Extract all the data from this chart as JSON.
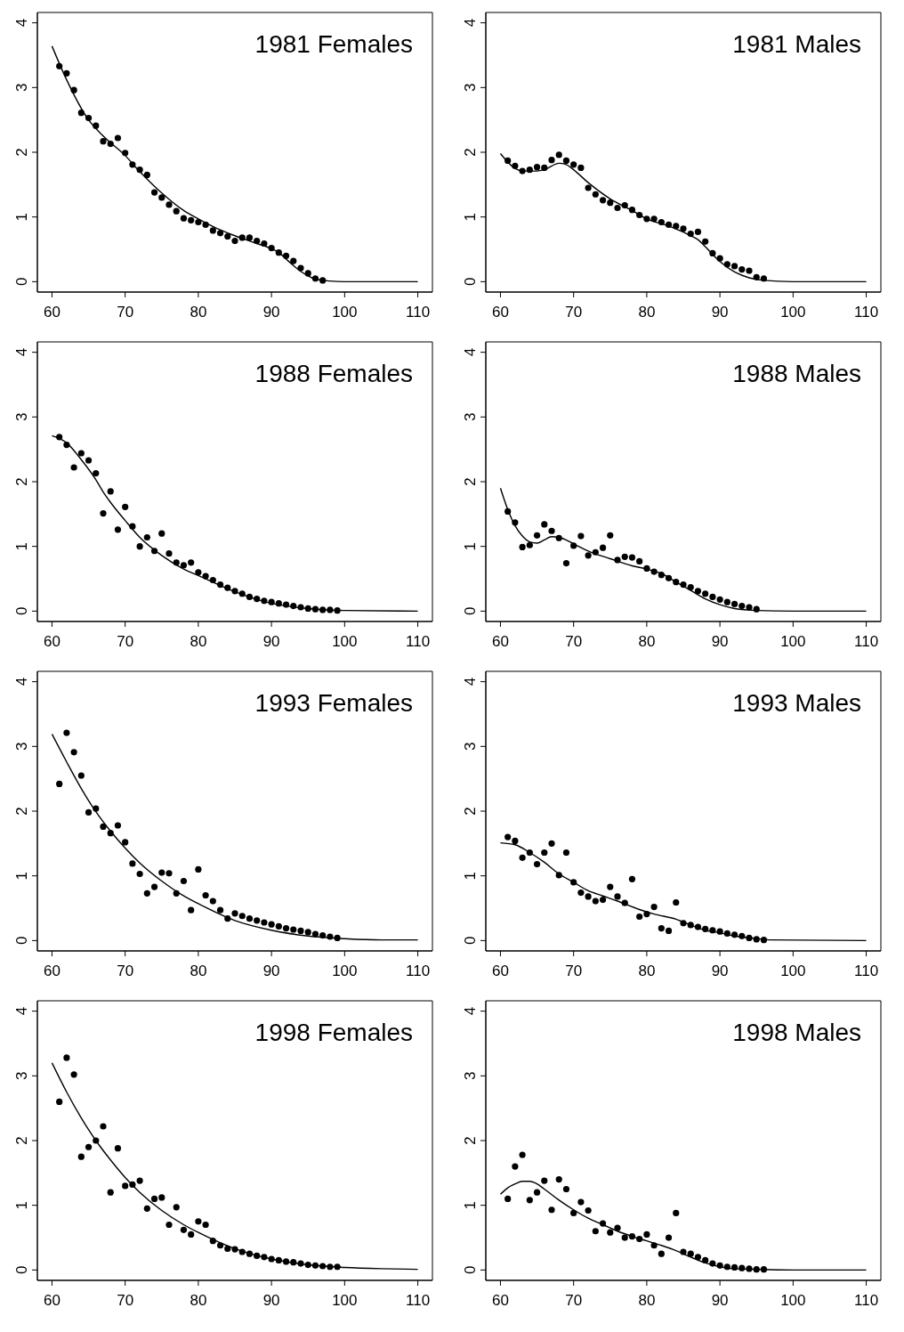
{
  "chart_data": [
    {
      "type": "scatter",
      "title": "1981 Females",
      "xlim": [
        58,
        112
      ],
      "ylim": [
        -0.16,
        4.16
      ],
      "xticks": [
        60,
        70,
        80,
        90,
        100,
        110
      ],
      "yticks": [
        0,
        1,
        2,
        3,
        4
      ],
      "grid": false,
      "legend": false,
      "line_style": "solid",
      "series": [
        {
          "marker": "circle",
          "color": "#000000",
          "x": [
            61,
            62,
            63,
            64,
            65,
            66,
            67,
            68,
            69,
            70,
            71,
            72,
            73,
            74,
            75,
            76,
            77,
            78,
            79,
            80,
            81,
            82,
            83,
            84,
            85,
            86,
            87,
            88,
            89,
            90,
            91,
            92,
            93,
            94,
            95,
            96,
            97
          ],
          "values": [
            3.33,
            3.22,
            2.96,
            2.61,
            2.53,
            2.41,
            2.17,
            2.13,
            2.22,
            1.99,
            1.81,
            1.73,
            1.65,
            1.38,
            1.3,
            1.19,
            1.09,
            0.98,
            0.95,
            0.92,
            0.88,
            0.79,
            0.75,
            0.7,
            0.63,
            0.68,
            0.68,
            0.63,
            0.59,
            0.52,
            0.45,
            0.4,
            0.32,
            0.21,
            0.13,
            0.05,
            0.02
          ]
        },
        {
          "type": "line",
          "marker": "none",
          "color": "#000000",
          "x": [
            60,
            62,
            65,
            67,
            70,
            72,
            75,
            78,
            80,
            83,
            85,
            88,
            90,
            91,
            92,
            93,
            94,
            95,
            96,
            98,
            100,
            110
          ],
          "values": [
            3.64,
            3.12,
            2.5,
            2.25,
            1.95,
            1.7,
            1.37,
            1.1,
            0.97,
            0.8,
            0.71,
            0.59,
            0.51,
            0.45,
            0.35,
            0.25,
            0.16,
            0.09,
            0.04,
            0.01,
            0,
            0
          ]
        }
      ]
    },
    {
      "type": "scatter",
      "title": "1981 Males",
      "xlim": [
        58,
        112
      ],
      "ylim": [
        -0.16,
        4.16
      ],
      "xticks": [
        60,
        70,
        80,
        90,
        100,
        110
      ],
      "yticks": [
        0,
        1,
        2,
        3,
        4
      ],
      "grid": false,
      "legend": false,
      "line_style": "solid",
      "series": [
        {
          "marker": "circle",
          "color": "#000000",
          "x": [
            61,
            62,
            63,
            64,
            65,
            66,
            67,
            68,
            69,
            70,
            71,
            72,
            73,
            74,
            75,
            76,
            77,
            78,
            79,
            80,
            81,
            82,
            83,
            84,
            85,
            86,
            87,
            88,
            89,
            90,
            91,
            92,
            93,
            94,
            95,
            96
          ],
          "values": [
            1.87,
            1.79,
            1.71,
            1.73,
            1.77,
            1.76,
            1.88,
            1.96,
            1.87,
            1.81,
            1.76,
            1.45,
            1.35,
            1.26,
            1.22,
            1.14,
            1.18,
            1.11,
            1.03,
            0.97,
            0.97,
            0.92,
            0.88,
            0.86,
            0.82,
            0.74,
            0.77,
            0.62,
            0.44,
            0.36,
            0.27,
            0.24,
            0.19,
            0.17,
            0.07,
            0.05
          ]
        },
        {
          "type": "line",
          "marker": "none",
          "color": "#000000",
          "x": [
            60,
            62,
            63,
            65,
            66,
            68,
            69,
            70,
            72,
            75,
            78,
            80,
            83,
            86,
            87,
            88,
            90,
            92,
            94,
            96,
            100,
            110
          ],
          "values": [
            1.98,
            1.75,
            1.71,
            1.71,
            1.73,
            1.83,
            1.81,
            1.73,
            1.53,
            1.28,
            1.1,
            0.97,
            0.86,
            0.71,
            0.65,
            0.54,
            0.31,
            0.15,
            0.06,
            0.02,
            0,
            0
          ]
        }
      ]
    },
    {
      "type": "scatter",
      "title": "1988 Females",
      "xlim": [
        58,
        112
      ],
      "ylim": [
        -0.16,
        4.16
      ],
      "xticks": [
        60,
        70,
        80,
        90,
        100,
        110
      ],
      "yticks": [
        0,
        1,
        2,
        3,
        4
      ],
      "grid": false,
      "legend": false,
      "line_style": "solid",
      "series": [
        {
          "marker": "circle",
          "color": "#000000",
          "x": [
            61,
            62,
            63,
            64,
            65,
            66,
            67,
            68,
            69,
            70,
            71,
            72,
            73,
            74,
            75,
            76,
            77,
            78,
            79,
            80,
            81,
            82,
            83,
            84,
            85,
            86,
            87,
            88,
            89,
            90,
            91,
            92,
            93,
            94,
            95,
            96,
            97,
            98,
            99
          ],
          "values": [
            2.69,
            2.57,
            2.22,
            2.44,
            2.33,
            2.13,
            1.51,
            1.85,
            1.26,
            1.61,
            1.31,
            1.0,
            1.14,
            0.93,
            1.2,
            0.89,
            0.75,
            0.71,
            0.75,
            0.6,
            0.54,
            0.48,
            0.41,
            0.36,
            0.31,
            0.27,
            0.22,
            0.19,
            0.16,
            0.14,
            0.12,
            0.1,
            0.08,
            0.06,
            0.04,
            0.03,
            0.02,
            0.02,
            0.01
          ]
        },
        {
          "type": "line",
          "marker": "none",
          "color": "#000000",
          "x": [
            60,
            62,
            64,
            66,
            67,
            68,
            70,
            72,
            75,
            78,
            80,
            85,
            90,
            95,
            100,
            110
          ],
          "values": [
            2.71,
            2.6,
            2.34,
            2.03,
            1.84,
            1.68,
            1.4,
            1.14,
            0.86,
            0.65,
            0.55,
            0.3,
            0.12,
            0.04,
            0.01,
            0
          ]
        }
      ]
    },
    {
      "type": "scatter",
      "title": "1988 Males",
      "xlim": [
        58,
        112
      ],
      "ylim": [
        -0.16,
        4.16
      ],
      "xticks": [
        60,
        70,
        80,
        90,
        100,
        110
      ],
      "yticks": [
        0,
        1,
        2,
        3,
        4
      ],
      "grid": false,
      "legend": false,
      "line_style": "solid",
      "series": [
        {
          "marker": "circle",
          "color": "#000000",
          "x": [
            61,
            62,
            63,
            64,
            65,
            66,
            67,
            68,
            69,
            70,
            71,
            72,
            73,
            74,
            75,
            76,
            77,
            78,
            79,
            80,
            81,
            82,
            83,
            84,
            85,
            86,
            87,
            88,
            89,
            90,
            91,
            92,
            93,
            94,
            95
          ],
          "values": [
            1.54,
            1.37,
            0.99,
            1.02,
            1.17,
            1.34,
            1.24,
            1.13,
            0.74,
            1.01,
            1.16,
            0.86,
            0.91,
            0.98,
            1.17,
            0.79,
            0.84,
            0.83,
            0.77,
            0.66,
            0.61,
            0.56,
            0.51,
            0.45,
            0.41,
            0.37,
            0.31,
            0.27,
            0.22,
            0.18,
            0.14,
            0.11,
            0.08,
            0.06,
            0.03
          ]
        },
        {
          "type": "line",
          "marker": "none",
          "color": "#000000",
          "x": [
            60,
            61,
            62,
            63,
            64,
            65,
            66,
            67,
            68,
            70,
            72,
            75,
            78,
            80,
            82,
            84,
            86,
            88,
            90,
            92,
            95,
            100,
            110
          ],
          "values": [
            1.9,
            1.57,
            1.32,
            1.16,
            1.07,
            1.05,
            1.1,
            1.15,
            1.14,
            1.04,
            0.93,
            0.81,
            0.7,
            0.65,
            0.58,
            0.45,
            0.32,
            0.19,
            0.1,
            0.04,
            0.01,
            0,
            0
          ]
        }
      ]
    },
    {
      "type": "scatter",
      "title": "1993 Females",
      "xlim": [
        58,
        112
      ],
      "ylim": [
        -0.16,
        4.16
      ],
      "xticks": [
        60,
        70,
        80,
        90,
        100,
        110
      ],
      "yticks": [
        0,
        1,
        2,
        3,
        4
      ],
      "grid": false,
      "legend": false,
      "line_style": "solid",
      "series": [
        {
          "marker": "circle",
          "color": "#000000",
          "x": [
            61,
            62,
            63,
            64,
            65,
            66,
            67,
            68,
            69,
            70,
            71,
            72,
            73,
            74,
            75,
            76,
            77,
            78,
            79,
            80,
            81,
            82,
            83,
            84,
            85,
            86,
            87,
            88,
            89,
            90,
            91,
            92,
            93,
            94,
            95,
            96,
            97,
            98,
            99
          ],
          "values": [
            2.42,
            3.21,
            2.91,
            2.55,
            1.98,
            2.04,
            1.76,
            1.66,
            1.78,
            1.52,
            1.19,
            1.03,
            0.73,
            0.83,
            1.05,
            1.04,
            0.73,
            0.92,
            0.47,
            1.1,
            0.7,
            0.61,
            0.47,
            0.34,
            0.42,
            0.38,
            0.34,
            0.31,
            0.28,
            0.25,
            0.22,
            0.19,
            0.17,
            0.15,
            0.13,
            0.1,
            0.08,
            0.06,
            0.04
          ]
        },
        {
          "type": "line",
          "marker": "none",
          "color": "#000000",
          "x": [
            60,
            62,
            64,
            66,
            68,
            70,
            72,
            75,
            78,
            80,
            85,
            90,
            95,
            100,
            105,
            110
          ],
          "values": [
            3.19,
            2.76,
            2.35,
            1.99,
            1.69,
            1.43,
            1.2,
            0.92,
            0.69,
            0.57,
            0.31,
            0.16,
            0.07,
            0.03,
            0.01,
            0.01
          ]
        }
      ]
    },
    {
      "type": "scatter",
      "title": "1993 Males",
      "xlim": [
        58,
        112
      ],
      "ylim": [
        -0.16,
        4.16
      ],
      "xticks": [
        60,
        70,
        80,
        90,
        100,
        110
      ],
      "yticks": [
        0,
        1,
        2,
        3,
        4
      ],
      "grid": false,
      "legend": false,
      "line_style": "solid",
      "series": [
        {
          "marker": "circle",
          "color": "#000000",
          "x": [
            61,
            62,
            63,
            64,
            65,
            66,
            67,
            68,
            69,
            70,
            71,
            72,
            73,
            74,
            75,
            76,
            77,
            78,
            79,
            80,
            81,
            82,
            83,
            84,
            85,
            86,
            87,
            88,
            89,
            90,
            91,
            92,
            93,
            94,
            95,
            96
          ],
          "values": [
            1.6,
            1.54,
            1.28,
            1.36,
            1.18,
            1.36,
            1.5,
            1.01,
            1.36,
            0.9,
            0.74,
            0.68,
            0.61,
            0.63,
            0.83,
            0.68,
            0.58,
            0.95,
            0.37,
            0.41,
            0.52,
            0.19,
            0.15,
            0.59,
            0.27,
            0.24,
            0.21,
            0.18,
            0.16,
            0.14,
            0.11,
            0.09,
            0.07,
            0.04,
            0.02,
            0.01
          ]
        },
        {
          "type": "line",
          "marker": "none",
          "color": "#000000",
          "x": [
            60,
            62,
            64,
            66,
            68,
            70,
            72,
            74,
            76,
            79,
            81,
            84,
            86,
            88,
            90,
            92,
            95,
            97,
            110
          ],
          "values": [
            1.51,
            1.48,
            1.36,
            1.21,
            1.03,
            0.9,
            0.77,
            0.69,
            0.61,
            0.48,
            0.41,
            0.33,
            0.24,
            0.16,
            0.12,
            0.07,
            0.03,
            0.01,
            0
          ]
        }
      ]
    },
    {
      "type": "scatter",
      "title": "1998 Females",
      "xlim": [
        58,
        112
      ],
      "ylim": [
        -0.16,
        4.16
      ],
      "xticks": [
        60,
        70,
        80,
        90,
        100,
        110
      ],
      "yticks": [
        0,
        1,
        2,
        3,
        4
      ],
      "grid": false,
      "legend": false,
      "line_style": "solid",
      "series": [
        {
          "marker": "circle",
          "color": "#000000",
          "x": [
            61,
            62,
            63,
            64,
            65,
            66,
            67,
            68,
            69,
            70,
            71,
            72,
            73,
            74,
            75,
            76,
            77,
            78,
            79,
            80,
            81,
            82,
            83,
            84,
            85,
            86,
            87,
            88,
            89,
            90,
            91,
            92,
            93,
            94,
            95,
            96,
            97,
            98,
            99
          ],
          "values": [
            2.6,
            3.28,
            3.02,
            1.75,
            1.9,
            2.0,
            2.22,
            1.2,
            1.88,
            1.3,
            1.32,
            1.38,
            0.95,
            1.1,
            1.12,
            0.7,
            0.97,
            0.62,
            0.55,
            0.75,
            0.7,
            0.45,
            0.38,
            0.33,
            0.32,
            0.28,
            0.25,
            0.22,
            0.2,
            0.17,
            0.15,
            0.13,
            0.12,
            0.1,
            0.08,
            0.07,
            0.06,
            0.05,
            0.05
          ]
        },
        {
          "type": "line",
          "marker": "none",
          "color": "#000000",
          "x": [
            60,
            62,
            64,
            66,
            68,
            70,
            72,
            75,
            78,
            80,
            85,
            90,
            95,
            100,
            105,
            110
          ],
          "values": [
            3.2,
            2.75,
            2.35,
            2.0,
            1.7,
            1.43,
            1.2,
            0.92,
            0.7,
            0.58,
            0.33,
            0.17,
            0.08,
            0.04,
            0.02,
            0.01
          ]
        }
      ]
    },
    {
      "type": "scatter",
      "title": "1998 Males",
      "xlim": [
        58,
        112
      ],
      "ylim": [
        -0.16,
        4.16
      ],
      "xticks": [
        60,
        70,
        80,
        90,
        100,
        110
      ],
      "yticks": [
        0,
        1,
        2,
        3,
        4
      ],
      "grid": false,
      "legend": false,
      "line_style": "solid",
      "series": [
        {
          "marker": "circle",
          "color": "#000000",
          "x": [
            61,
            62,
            63,
            64,
            65,
            66,
            67,
            68,
            69,
            70,
            71,
            72,
            73,
            74,
            75,
            76,
            77,
            78,
            79,
            80,
            81,
            82,
            83,
            84,
            85,
            86,
            87,
            88,
            89,
            90,
            91,
            92,
            93,
            94,
            95,
            96
          ],
          "values": [
            1.1,
            1.6,
            1.78,
            1.08,
            1.2,
            1.38,
            0.93,
            1.4,
            1.25,
            0.88,
            1.05,
            0.92,
            0.6,
            0.72,
            0.58,
            0.65,
            0.5,
            0.52,
            0.48,
            0.55,
            0.38,
            0.25,
            0.5,
            0.88,
            0.28,
            0.25,
            0.2,
            0.15,
            0.1,
            0.07,
            0.05,
            0.04,
            0.03,
            0.02,
            0.01,
            0.01
          ]
        },
        {
          "type": "line",
          "marker": "none",
          "color": "#000000",
          "x": [
            60,
            61,
            62,
            63,
            64,
            65,
            66,
            68,
            70,
            72,
            74,
            76,
            78,
            80,
            82,
            84,
            86,
            88,
            90,
            92,
            95,
            100,
            110
          ],
          "values": [
            1.17,
            1.27,
            1.33,
            1.37,
            1.37,
            1.33,
            1.25,
            1.08,
            0.93,
            0.8,
            0.7,
            0.6,
            0.52,
            0.45,
            0.38,
            0.3,
            0.2,
            0.11,
            0.05,
            0.02,
            0.01,
            0,
            0
          ]
        }
      ]
    }
  ]
}
